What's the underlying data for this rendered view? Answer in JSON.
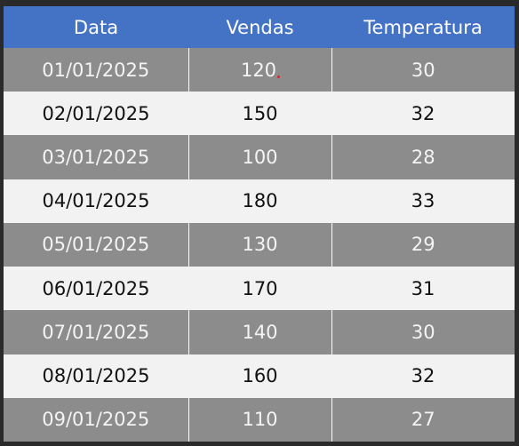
{
  "table": {
    "headers": [
      "Data",
      "Vendas",
      "Temperatura"
    ],
    "rows": [
      [
        "01/01/2025",
        "120",
        "30"
      ],
      [
        "02/01/2025",
        "150",
        "32"
      ],
      [
        "03/01/2025",
        "100",
        "28"
      ],
      [
        "04/01/2025",
        "180",
        "33"
      ],
      [
        "05/01/2025",
        "130",
        "29"
      ],
      [
        "06/01/2025",
        "170",
        "31"
      ],
      [
        "07/01/2025",
        "140",
        "30"
      ],
      [
        "08/01/2025",
        "160",
        "32"
      ],
      [
        "09/01/2025",
        "110",
        "27"
      ]
    ]
  },
  "colors": {
    "header_bg": "#4472c4",
    "header_text": "#ffffff",
    "band_dark": "#8c8c8c",
    "band_light": "#f2f2f2",
    "cursor": "#e0203a"
  }
}
